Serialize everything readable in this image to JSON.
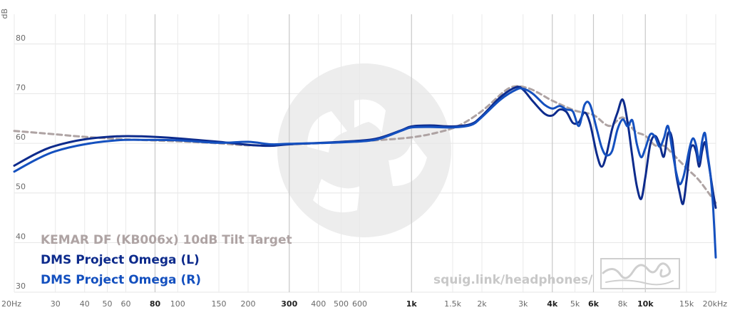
{
  "chart_data": {
    "type": "line",
    "ylabel": "dB",
    "xlabel": "",
    "ylim": [
      30,
      86
    ],
    "xlim": [
      20,
      20000
    ],
    "xscale": "log",
    "y_ticks": [
      "30",
      "40",
      "50",
      "60",
      "70",
      "80"
    ],
    "x_ticks": [
      {
        "label": "20Hz",
        "value": 20,
        "bold": false
      },
      {
        "label": "30",
        "value": 30,
        "bold": false
      },
      {
        "label": "40",
        "value": 40,
        "bold": false
      },
      {
        "label": "50",
        "value": 50,
        "bold": false
      },
      {
        "label": "60",
        "value": 60,
        "bold": false
      },
      {
        "label": "80",
        "value": 80,
        "bold": true
      },
      {
        "label": "100",
        "value": 100,
        "bold": false
      },
      {
        "label": "150",
        "value": 150,
        "bold": false
      },
      {
        "label": "200",
        "value": 200,
        "bold": false
      },
      {
        "label": "300",
        "value": 300,
        "bold": true
      },
      {
        "label": "400",
        "value": 400,
        "bold": false
      },
      {
        "label": "500",
        "value": 500,
        "bold": false
      },
      {
        "label": "600",
        "value": 600,
        "bold": false
      },
      {
        "label": "1k",
        "value": 1000,
        "bold": true
      },
      {
        "label": "1.5k",
        "value": 1500,
        "bold": false
      },
      {
        "label": "2k",
        "value": 2000,
        "bold": false
      },
      {
        "label": "3k",
        "value": 3000,
        "bold": false
      },
      {
        "label": "4k",
        "value": 4000,
        "bold": true
      },
      {
        "label": "5k",
        "value": 5000,
        "bold": false
      },
      {
        "label": "6k",
        "value": 6000,
        "bold": true
      },
      {
        "label": "8k",
        "value": 8000,
        "bold": false
      },
      {
        "label": "10k",
        "value": 10000,
        "bold": true
      },
      {
        "label": "15k",
        "value": 15000,
        "bold": false
      },
      {
        "label": "20kHz",
        "value": 20000,
        "bold": false
      }
    ],
    "x_gridlines_major": [
      80,
      300,
      1000,
      4000,
      6000,
      10000
    ],
    "series": [
      {
        "name": "KEMAR DF (KB006x) 10dB Tilt Target",
        "color": "#aea3a3",
        "dashed": true,
        "points": [
          [
            20,
            62.5
          ],
          [
            30,
            61.8
          ],
          [
            40,
            61.3
          ],
          [
            60,
            60.8
          ],
          [
            100,
            60.4
          ],
          [
            150,
            60
          ],
          [
            200,
            59.6
          ],
          [
            300,
            59.8
          ],
          [
            500,
            60.2
          ],
          [
            700,
            60.6
          ],
          [
            1000,
            61.2
          ],
          [
            1300,
            62.2
          ],
          [
            1600,
            63.6
          ],
          [
            2000,
            66.5
          ],
          [
            2500,
            70.5
          ],
          [
            2800,
            71.5
          ],
          [
            3200,
            71
          ],
          [
            3600,
            69.8
          ],
          [
            4000,
            68.6
          ],
          [
            5000,
            66.6
          ],
          [
            6000,
            65.7
          ],
          [
            7000,
            63.5
          ],
          [
            8000,
            65.2
          ],
          [
            9000,
            62.5
          ],
          [
            10000,
            61.5
          ],
          [
            11000,
            59.6
          ],
          [
            12000,
            59.5
          ],
          [
            13000,
            58
          ],
          [
            15000,
            55
          ],
          [
            17000,
            52.5
          ],
          [
            20000,
            48
          ]
        ]
      },
      {
        "name": "DMS Project Omega (L)",
        "color": "#0d2b8c",
        "dashed": false,
        "points": [
          [
            20,
            55.5
          ],
          [
            25,
            58
          ],
          [
            30,
            59.5
          ],
          [
            40,
            60.8
          ],
          [
            55,
            61.4
          ],
          [
            70,
            61.4
          ],
          [
            100,
            61
          ],
          [
            150,
            60.3
          ],
          [
            200,
            59.7
          ],
          [
            250,
            59.5
          ],
          [
            300,
            59.8
          ],
          [
            500,
            60.3
          ],
          [
            700,
            60.9
          ],
          [
            900,
            62.6
          ],
          [
            1000,
            63.4
          ],
          [
            1200,
            63.6
          ],
          [
            1500,
            63.4
          ],
          [
            1800,
            63.9
          ],
          [
            2000,
            65.5
          ],
          [
            2400,
            69.3
          ],
          [
            2800,
            71.3
          ],
          [
            3000,
            70.8
          ],
          [
            3300,
            68.5
          ],
          [
            3700,
            66
          ],
          [
            4000,
            65.6
          ],
          [
            4300,
            66.8
          ],
          [
            4600,
            66.3
          ],
          [
            4900,
            64.1
          ],
          [
            5200,
            64.3
          ],
          [
            5500,
            66.2
          ],
          [
            5800,
            64
          ],
          [
            6200,
            57.8
          ],
          [
            6500,
            55.3
          ],
          [
            6800,
            57.5
          ],
          [
            7200,
            62.8
          ],
          [
            7600,
            66.2
          ],
          [
            8000,
            68.8
          ],
          [
            8400,
            64.2
          ],
          [
            8800,
            57.2
          ],
          [
            9200,
            51.3
          ],
          [
            9600,
            48.8
          ],
          [
            10000,
            53.2
          ],
          [
            10500,
            59.8
          ],
          [
            11000,
            61.5
          ],
          [
            11500,
            59.8
          ],
          [
            12000,
            57.3
          ],
          [
            12500,
            62
          ],
          [
            13000,
            61
          ],
          [
            13500,
            54.2
          ],
          [
            14000,
            50.2
          ],
          [
            14500,
            47.8
          ],
          [
            15000,
            52.5
          ],
          [
            15500,
            58.3
          ],
          [
            16000,
            59.6
          ],
          [
            16500,
            58.2
          ],
          [
            17000,
            55.3
          ],
          [
            17500,
            58.5
          ],
          [
            18000,
            60.2
          ],
          [
            18500,
            57
          ],
          [
            19000,
            53.5
          ],
          [
            19500,
            50
          ],
          [
            20000,
            47
          ]
        ]
      },
      {
        "name": "DMS Project Omega (R)",
        "color": "#1450bf",
        "dashed": false,
        "points": [
          [
            20,
            54.3
          ],
          [
            25,
            56.8
          ],
          [
            30,
            58.4
          ],
          [
            40,
            59.8
          ],
          [
            55,
            60.6
          ],
          [
            70,
            60.7
          ],
          [
            100,
            60.6
          ],
          [
            150,
            60.1
          ],
          [
            200,
            60.3
          ],
          [
            250,
            59.8
          ],
          [
            300,
            59.9
          ],
          [
            500,
            60.2
          ],
          [
            700,
            60.7
          ],
          [
            900,
            62.5
          ],
          [
            1000,
            63.2
          ],
          [
            1200,
            63.3
          ],
          [
            1500,
            63.2
          ],
          [
            1800,
            63.7
          ],
          [
            2000,
            65.3
          ],
          [
            2400,
            68.8
          ],
          [
            2800,
            70.8
          ],
          [
            3000,
            71
          ],
          [
            3300,
            70
          ],
          [
            3700,
            67.8
          ],
          [
            4000,
            67
          ],
          [
            4300,
            67.5
          ],
          [
            4600,
            66.8
          ],
          [
            4900,
            66.4
          ],
          [
            5200,
            63.5
          ],
          [
            5500,
            67.8
          ],
          [
            5800,
            67.8
          ],
          [
            6200,
            62.8
          ],
          [
            6500,
            59.2
          ],
          [
            6800,
            57.6
          ],
          [
            7200,
            58.4
          ],
          [
            7600,
            62.8
          ],
          [
            8000,
            64.8
          ],
          [
            8400,
            63.4
          ],
          [
            8800,
            64.6
          ],
          [
            9200,
            59.8
          ],
          [
            9600,
            57.2
          ],
          [
            10000,
            59
          ],
          [
            10500,
            61.8
          ],
          [
            11000,
            61.3
          ],
          [
            11500,
            59.3
          ],
          [
            12000,
            61
          ],
          [
            12500,
            63.5
          ],
          [
            13000,
            59
          ],
          [
            13500,
            54.5
          ],
          [
            14000,
            51.8
          ],
          [
            14500,
            53
          ],
          [
            15000,
            56
          ],
          [
            15500,
            59.3
          ],
          [
            16000,
            61
          ],
          [
            16500,
            59.5
          ],
          [
            17000,
            56.5
          ],
          [
            17500,
            60.5
          ],
          [
            18000,
            62
          ],
          [
            18500,
            57.5
          ],
          [
            19000,
            53.5
          ],
          [
            19500,
            47
          ],
          [
            20000,
            37
          ]
        ]
      }
    ]
  },
  "watermark": {
    "url": "squig.link/headphones/",
    "logo_icon": "squiglink-logo-icon",
    "signature_icon": "crinacle-signature-icon"
  }
}
